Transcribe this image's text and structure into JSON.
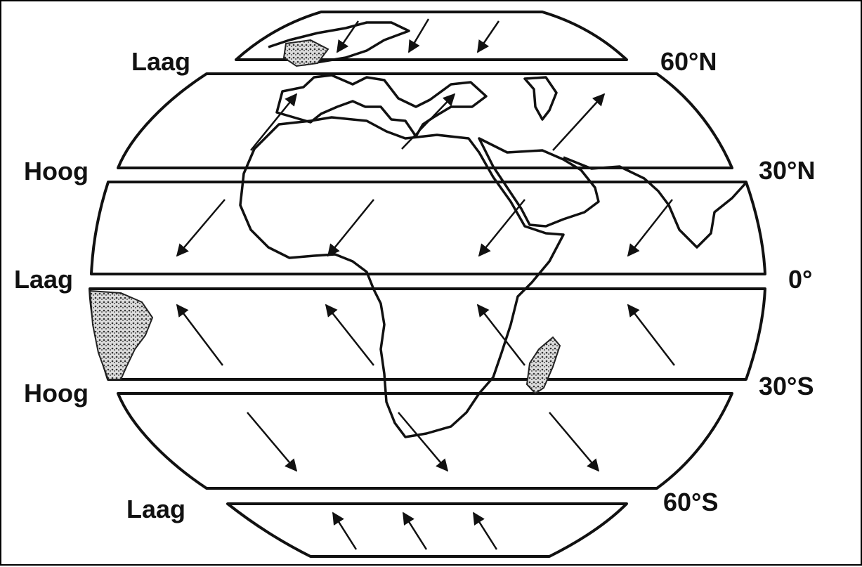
{
  "map": {
    "pressure_labels": [
      "Laag",
      "Hoog",
      "Laag",
      "Hoog",
      "Laag"
    ],
    "latitude_labels": [
      "60°N",
      "30°N",
      "0°",
      "30°S",
      "60°S"
    ],
    "colors": {
      "outline": "#111111",
      "band_fill": "#ffffff",
      "background": "#ffffff"
    },
    "wind_pattern": {
      "band_60N_30N": "toward-northeast",
      "band_30N_0": "toward-southwest",
      "band_0_30S": "toward-northwest",
      "band_30S_60S": "toward-southeast",
      "polar_north": "toward-south",
      "polar_south": "toward-northwest"
    }
  }
}
